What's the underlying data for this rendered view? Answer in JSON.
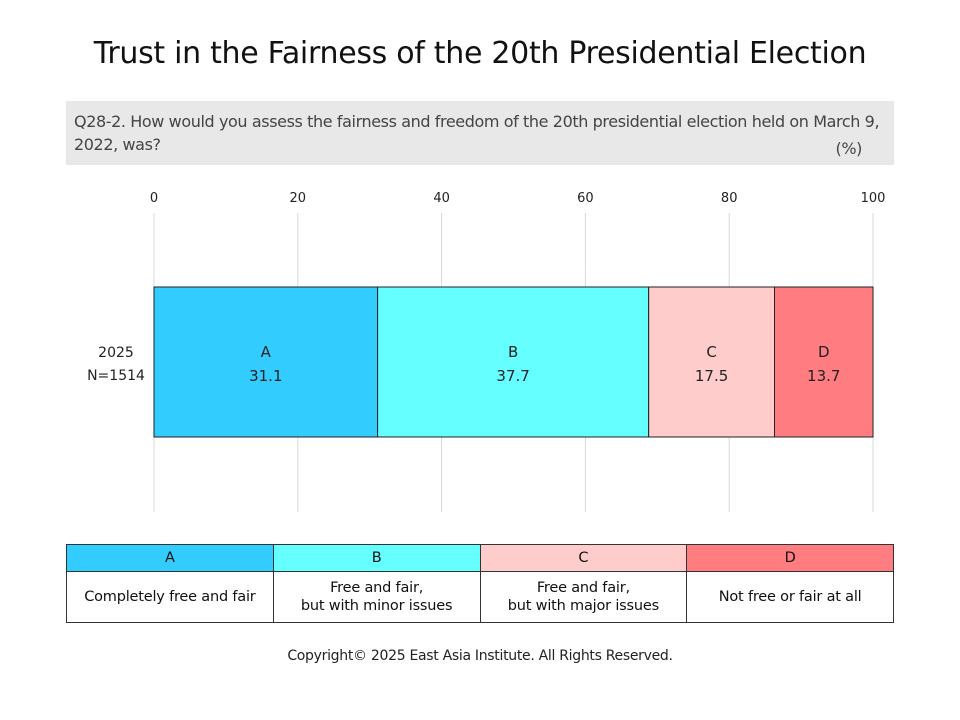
{
  "title": "Trust in the Fairness of the 20th Presidential Election",
  "question": "Q28-2. How would you assess the fairness and freedom of the 20th presidential election held on March 9, 2022, was?",
  "unit": "(%)",
  "chart_data": {
    "type": "bar",
    "orientation": "horizontal",
    "stacked": true,
    "xlim": [
      0,
      100
    ],
    "xticks": [
      0,
      20,
      40,
      60,
      80,
      100
    ],
    "grid": true,
    "categories": [
      "2025\nN=1514"
    ],
    "category_lines": [
      "2025",
      "N=1514"
    ],
    "series": [
      {
        "name": "A",
        "values": [
          31.1
        ],
        "color": "#33ccff"
      },
      {
        "name": "B",
        "values": [
          37.7
        ],
        "color": "#66ffff"
      },
      {
        "name": "C",
        "values": [
          17.5
        ],
        "color": "#ffcccc"
      },
      {
        "name": "D",
        "values": [
          13.7
        ],
        "color": "#ff7c80"
      }
    ]
  },
  "legend": [
    {
      "code": "A",
      "desc": [
        "Completely free and fair"
      ],
      "color": "#33ccff"
    },
    {
      "code": "B",
      "desc": [
        "Free and fair,",
        "but with minor issues"
      ],
      "color": "#66ffff"
    },
    {
      "code": "C",
      "desc": [
        "Free and fair,",
        "but with major issues"
      ],
      "color": "#ffcccc"
    },
    {
      "code": "D",
      "desc": [
        "Not free or fair  at all"
      ],
      "color": "#ff7c80"
    }
  ],
  "copyright": "Copyright© 2025 East Asia Institute. All Rights Reserved."
}
